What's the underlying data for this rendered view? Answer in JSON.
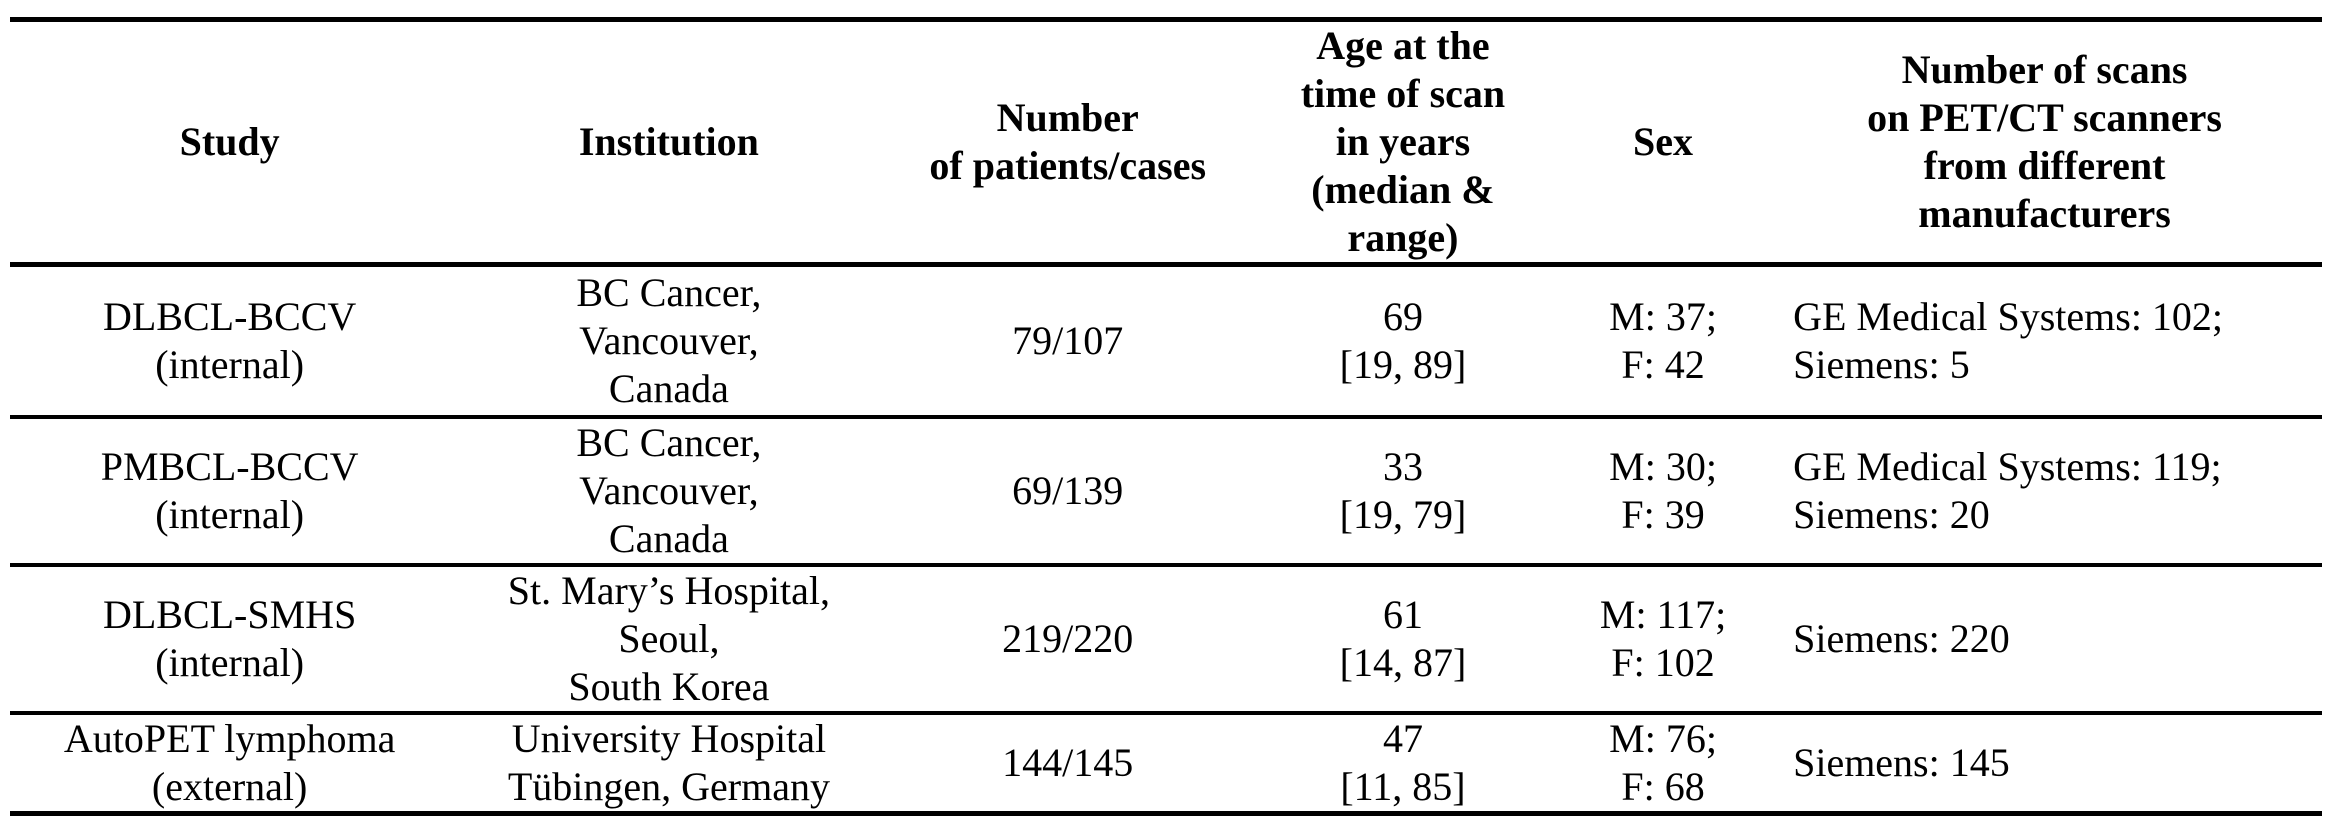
{
  "table": {
    "colors": {
      "background": "#ffffff",
      "text": "#000000",
      "rule": "#000000"
    },
    "columns": [
      {
        "label": "Study"
      },
      {
        "label": "Institution"
      },
      {
        "label": "Number\nof patients/cases"
      },
      {
        "label": "Age at the\ntime of scan\nin years\n(median &\nrange)"
      },
      {
        "label": "Sex"
      },
      {
        "label": "Number of scans\non PET/CT scanners\nfrom different\nmanufacturers"
      }
    ],
    "rows": [
      {
        "study": "DLBCL-BCCV\n(internal)",
        "institution": "BC Cancer,\nVancouver,\nCanada",
        "patients_cases": "79/107",
        "age_median_range": "69\n[19, 89]",
        "sex": "M: 37;\nF: 42",
        "scanners": "GE Medical Systems: 102;\nSiemens: 5"
      },
      {
        "study": "PMBCL-BCCV\n(internal)",
        "institution": "BC Cancer,\nVancouver,\nCanada",
        "patients_cases": "69/139",
        "age_median_range": "33\n[19, 79]",
        "sex": "M: 30;\nF: 39",
        "scanners": "GE Medical Systems: 119;\nSiemens: 20"
      },
      {
        "study": "DLBCL-SMHS\n(internal)",
        "institution": "St. Mary’s Hospital,\nSeoul,\nSouth Korea",
        "patients_cases": "219/220",
        "age_median_range": "61\n[14, 87]",
        "sex": "M: 117;\nF: 102",
        "scanners": "Siemens: 220"
      },
      {
        "study": "AutoPET lymphoma\n(external)",
        "institution": "University Hospital\nTübingen, Germany",
        "patients_cases": "144/145",
        "age_median_range": "47\n[11, 85]",
        "sex": "M: 76;\nF: 68",
        "scanners": "Siemens: 145"
      }
    ]
  }
}
